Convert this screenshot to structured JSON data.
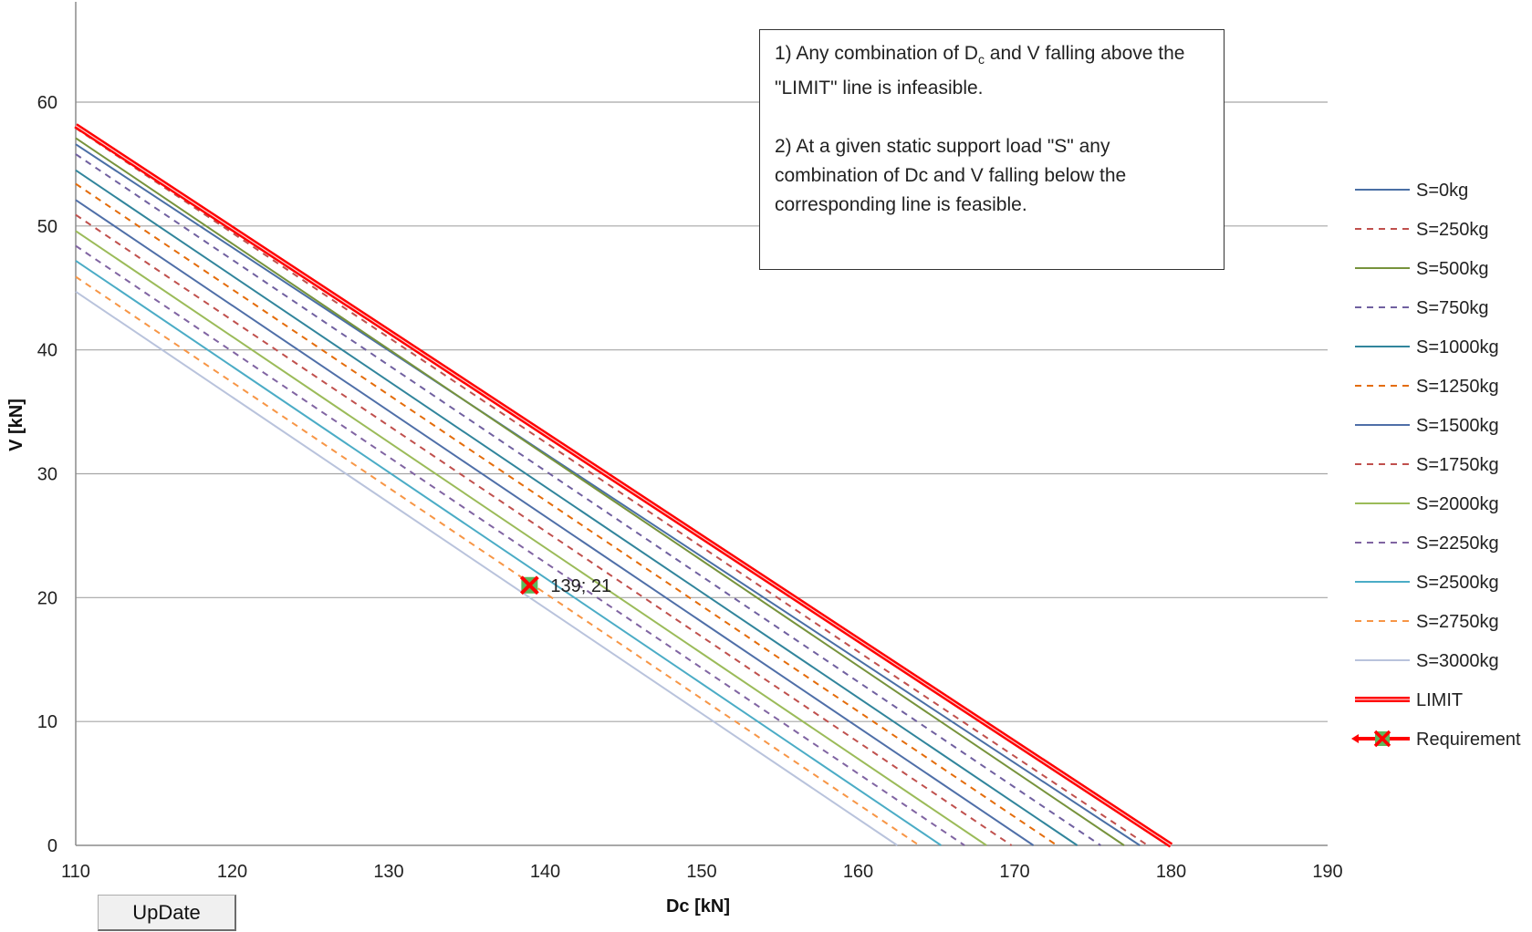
{
  "chart_data": {
    "type": "line",
    "xlabel": "Dc [kN]",
    "ylabel": "V [kN]",
    "xlim": [
      110,
      190
    ],
    "ylim": [
      0,
      60
    ],
    "x_ticks": [
      110,
      120,
      130,
      140,
      150,
      160,
      170,
      180,
      190
    ],
    "y_ticks": [
      0,
      10,
      20,
      30,
      40,
      50,
      60
    ],
    "grid": "horizontal",
    "legend_position": "right",
    "series": [
      {
        "name": "S=0kg",
        "color": "#4a6fa5",
        "dash": "solid",
        "width": 2,
        "x": [
          110,
          178
        ],
        "y": [
          56.6,
          0
        ]
      },
      {
        "name": "S=250kg",
        "color": "#c0504d",
        "dash": "dashed",
        "width": 2,
        "x": [
          110,
          178.5
        ],
        "y": [
          57.9,
          0
        ]
      },
      {
        "name": "S=500kg",
        "color": "#77933c",
        "dash": "solid",
        "width": 2,
        "x": [
          110,
          177
        ],
        "y": [
          57.1,
          0
        ]
      },
      {
        "name": "S=750kg",
        "color": "#7060a0",
        "dash": "dashed",
        "width": 2,
        "x": [
          110,
          175.5
        ],
        "y": [
          55.8,
          0
        ]
      },
      {
        "name": "S=1000kg",
        "color": "#31859c",
        "dash": "solid",
        "width": 2,
        "x": [
          110,
          174
        ],
        "y": [
          54.5,
          0
        ]
      },
      {
        "name": "S=1250kg",
        "color": "#e46c0a",
        "dash": "dashed",
        "width": 2,
        "x": [
          110,
          172.7
        ],
        "y": [
          53.4,
          0
        ]
      },
      {
        "name": "S=1500kg",
        "color": "#4f6fa8",
        "dash": "solid",
        "width": 2,
        "x": [
          110,
          171.2
        ],
        "y": [
          52.1,
          0
        ]
      },
      {
        "name": "S=1750kg",
        "color": "#c0504d",
        "dash": "dashed",
        "width": 2,
        "x": [
          110,
          169.8
        ],
        "y": [
          50.9,
          0
        ]
      },
      {
        "name": "S=2000kg",
        "color": "#9bbb59",
        "dash": "solid",
        "width": 2,
        "x": [
          110,
          168.2
        ],
        "y": [
          49.6,
          0
        ]
      },
      {
        "name": "S=2250kg",
        "color": "#8064a2",
        "dash": "dashed",
        "width": 2,
        "x": [
          110,
          166.8
        ],
        "y": [
          48.4,
          0
        ]
      },
      {
        "name": "S=2500kg",
        "color": "#4bacc6",
        "dash": "solid",
        "width": 2,
        "x": [
          110,
          165.3
        ],
        "y": [
          47.2,
          0
        ]
      },
      {
        "name": "S=2750kg",
        "color": "#f79646",
        "dash": "dashed",
        "width": 2,
        "x": [
          110,
          163.9
        ],
        "y": [
          45.9,
          0
        ]
      },
      {
        "name": "S=3000kg",
        "color": "#b9c3dc",
        "dash": "solid",
        "width": 2,
        "x": [
          110,
          162.5
        ],
        "y": [
          44.7,
          0
        ]
      },
      {
        "name": "LIMIT",
        "color": "#ff0000",
        "dash": "solid",
        "width": 5,
        "x": [
          110,
          180
        ],
        "y": [
          58.1,
          0
        ]
      }
    ],
    "requirement": {
      "name": "Requirement",
      "x": 139,
      "y": 21,
      "label": "139; 21",
      "marker_color": "#5cb85c",
      "cross_color": "#ff0000"
    }
  },
  "note": {
    "line1_pre": "1) Any combination of D",
    "line1_sub": "c",
    "line1_post": " and V falling above the \"LIMIT\" line is infeasible.",
    "line2": "2) At a given static support load \"S\" any combination of Dc and V falling below the corresponding line is feasible."
  },
  "button": {
    "label": "UpDate"
  }
}
